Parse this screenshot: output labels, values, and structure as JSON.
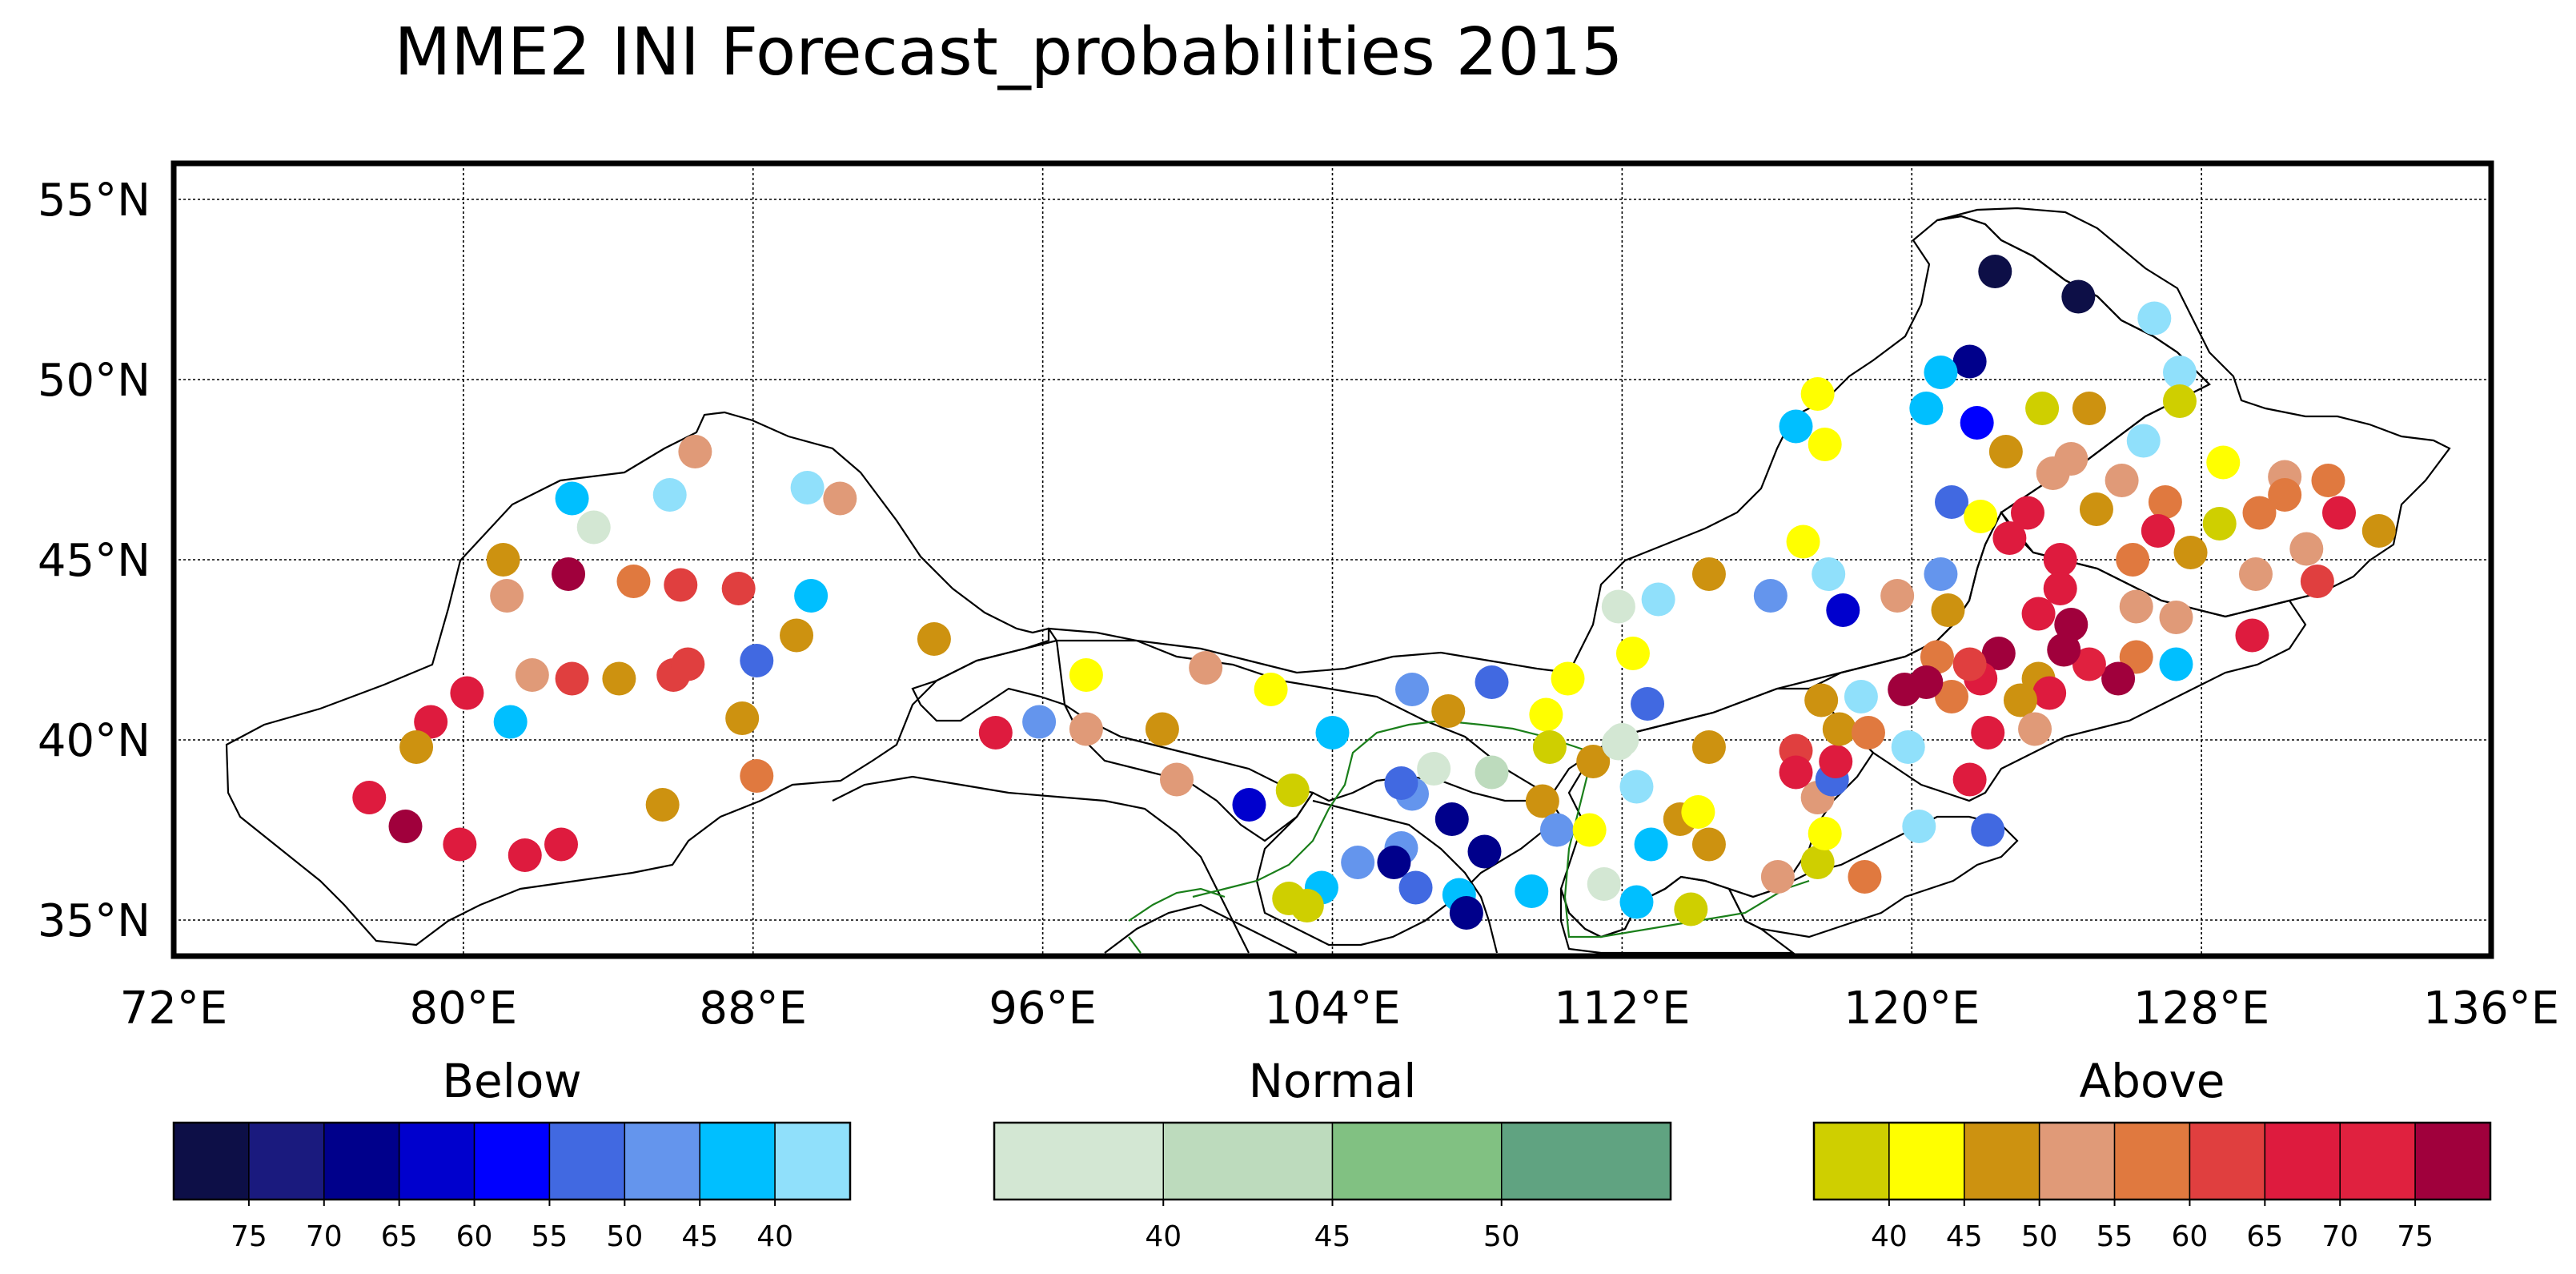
{
  "chart_data": {
    "type": "scatter",
    "title": "MME2 INI Forecast_probabilities 2015",
    "xlabel": "",
    "ylabel": "",
    "xlim": [
      72,
      136
    ],
    "ylim": [
      34,
      56
    ],
    "x_ticks": [
      "72°E",
      "80°E",
      "88°E",
      "96°E",
      "104°E",
      "112°E",
      "120°E",
      "128°E",
      "136°E"
    ],
    "y_ticks": [
      "55°N",
      "50°N",
      "45°N",
      "40°N",
      "35°N"
    ],
    "grid": true,
    "colorbars": [
      {
        "title": "Below",
        "colors": [
          "#0d0f47",
          "#1a1a7e",
          "#00008b",
          "#0000cd",
          "#0000ff",
          "#4169e1",
          "#6495ed",
          "#00bfff",
          "#90e0fb"
        ],
        "tick_labels": [
          "75",
          "70",
          "65",
          "60",
          "55",
          "50",
          "45",
          "40"
        ]
      },
      {
        "title": "Normal",
        "colors": [
          "#d3e7d3",
          "#bddbbd",
          "#81c182",
          "#60a381"
        ],
        "tick_labels": [
          "40",
          "45",
          "50"
        ]
      },
      {
        "title": "Above",
        "colors": [
          "#cfcf00",
          "#ffff00",
          "#cd9210",
          "#e09a78",
          "#e0793f",
          "#e03f3f",
          "#de1b3e",
          "#e0213f",
          "#a0003c"
        ],
        "tick_labels": [
          "40",
          "45",
          "50",
          "55",
          "60",
          "65",
          "70",
          "75"
        ]
      }
    ],
    "points": [
      {
        "lon": 122.3,
        "lat": 53.0,
        "c": "#0d0f47"
      },
      {
        "lon": 124.6,
        "lat": 52.3,
        "c": "#0d0f47"
      },
      {
        "lon": 126.7,
        "lat": 51.7,
        "c": "#90e0fb"
      },
      {
        "lon": 127.4,
        "lat": 50.2,
        "c": "#90e0fb"
      },
      {
        "lon": 121.6,
        "lat": 50.5,
        "c": "#00008b"
      },
      {
        "lon": 120.8,
        "lat": 50.2,
        "c": "#00bfff"
      },
      {
        "lon": 117.4,
        "lat": 49.6,
        "c": "#ffff00"
      },
      {
        "lon": 116.8,
        "lat": 48.7,
        "c": "#00bfff"
      },
      {
        "lon": 117.6,
        "lat": 48.2,
        "c": "#ffff00"
      },
      {
        "lon": 120.4,
        "lat": 49.2,
        "c": "#00bfff"
      },
      {
        "lon": 121.8,
        "lat": 48.8,
        "c": "#0000ff"
      },
      {
        "lon": 123.6,
        "lat": 49.2,
        "c": "#cfcf00"
      },
      {
        "lon": 124.9,
        "lat": 49.2,
        "c": "#cd9210"
      },
      {
        "lon": 127.4,
        "lat": 49.4,
        "c": "#cfcf00"
      },
      {
        "lon": 126.4,
        "lat": 48.3,
        "c": "#90e0fb"
      },
      {
        "lon": 122.6,
        "lat": 48.0,
        "c": "#cd9210"
      },
      {
        "lon": 124.4,
        "lat": 47.8,
        "c": "#e09a78"
      },
      {
        "lon": 123.9,
        "lat": 47.4,
        "c": "#e09a78"
      },
      {
        "lon": 125.8,
        "lat": 47.2,
        "c": "#e09a78"
      },
      {
        "lon": 128.6,
        "lat": 47.7,
        "c": "#ffff00"
      },
      {
        "lon": 130.3,
        "lat": 47.3,
        "c": "#e09a78"
      },
      {
        "lon": 131.5,
        "lat": 47.2,
        "c": "#e0793f"
      },
      {
        "lon": 130.3,
        "lat": 46.8,
        "c": "#e0793f"
      },
      {
        "lon": 129.6,
        "lat": 46.3,
        "c": "#e0793f"
      },
      {
        "lon": 127.0,
        "lat": 46.6,
        "c": "#e0793f"
      },
      {
        "lon": 125.1,
        "lat": 46.4,
        "c": "#cd9210"
      },
      {
        "lon": 121.1,
        "lat": 46.6,
        "c": "#4169e1"
      },
      {
        "lon": 121.9,
        "lat": 46.2,
        "c": "#ffff00"
      },
      {
        "lon": 123.2,
        "lat": 46.3,
        "c": "#de1b3e"
      },
      {
        "lon": 122.7,
        "lat": 45.6,
        "c": "#de1b3e"
      },
      {
        "lon": 124.1,
        "lat": 45.0,
        "c": "#de1b3e"
      },
      {
        "lon": 126.8,
        "lat": 45.8,
        "c": "#de1b3e"
      },
      {
        "lon": 126.1,
        "lat": 45.0,
        "c": "#e0793f"
      },
      {
        "lon": 128.5,
        "lat": 46.0,
        "c": "#cfcf00"
      },
      {
        "lon": 127.7,
        "lat": 45.2,
        "c": "#cd9210"
      },
      {
        "lon": 130.9,
        "lat": 45.3,
        "c": "#e09a78"
      },
      {
        "lon": 131.8,
        "lat": 46.3,
        "c": "#de1b3e"
      },
      {
        "lon": 132.9,
        "lat": 45.8,
        "c": "#cd9210"
      },
      {
        "lon": 129.5,
        "lat": 44.6,
        "c": "#e09a78"
      },
      {
        "lon": 131.2,
        "lat": 44.4,
        "c": "#e03f3f"
      },
      {
        "lon": 124.1,
        "lat": 44.2,
        "c": "#de1b3e"
      },
      {
        "lon": 123.5,
        "lat": 43.5,
        "c": "#de1b3e"
      },
      {
        "lon": 124.4,
        "lat": 43.2,
        "c": "#a0003c"
      },
      {
        "lon": 126.2,
        "lat": 43.7,
        "c": "#e09a78"
      },
      {
        "lon": 127.3,
        "lat": 43.4,
        "c": "#e09a78"
      },
      {
        "lon": 129.4,
        "lat": 42.9,
        "c": "#de1b3e"
      },
      {
        "lon": 127.3,
        "lat": 42.1,
        "c": "#00bfff"
      },
      {
        "lon": 126.2,
        "lat": 42.3,
        "c": "#e0793f"
      },
      {
        "lon": 125.7,
        "lat": 41.7,
        "c": "#a0003c"
      },
      {
        "lon": 124.9,
        "lat": 42.1,
        "c": "#e0213f"
      },
      {
        "lon": 124.2,
        "lat": 42.5,
        "c": "#a0003c"
      },
      {
        "lon": 123.5,
        "lat": 41.7,
        "c": "#cd9210"
      },
      {
        "lon": 123.8,
        "lat": 41.3,
        "c": "#de1b3e"
      },
      {
        "lon": 123.0,
        "lat": 41.1,
        "c": "#cd9210"
      },
      {
        "lon": 122.4,
        "lat": 42.4,
        "c": "#a0003c"
      },
      {
        "lon": 121.9,
        "lat": 41.7,
        "c": "#de1b3e"
      },
      {
        "lon": 121.6,
        "lat": 42.1,
        "c": "#e03f3f"
      },
      {
        "lon": 120.7,
        "lat": 42.3,
        "c": "#e0793f"
      },
      {
        "lon": 121.1,
        "lat": 41.2,
        "c": "#e0793f"
      },
      {
        "lon": 120.4,
        "lat": 41.6,
        "c": "#a0003c"
      },
      {
        "lon": 119.8,
        "lat": 41.4,
        "c": "#a0003c"
      },
      {
        "lon": 122.1,
        "lat": 40.2,
        "c": "#de1b3e"
      },
      {
        "lon": 123.4,
        "lat": 40.3,
        "c": "#e09a78"
      },
      {
        "lon": 121.6,
        "lat": 38.9,
        "c": "#de1b3e"
      },
      {
        "lon": 122.1,
        "lat": 37.5,
        "c": "#4169e1"
      },
      {
        "lon": 120.2,
        "lat": 37.6,
        "c": "#90e0fb"
      },
      {
        "lon": 119.9,
        "lat": 39.8,
        "c": "#90e0fb"
      },
      {
        "lon": 121.0,
        "lat": 43.6,
        "c": "#cd9210"
      },
      {
        "lon": 120.8,
        "lat": 44.6,
        "c": "#6495ed"
      },
      {
        "lon": 119.6,
        "lat": 44.0,
        "c": "#e09a78"
      },
      {
        "lon": 117.7,
        "lat": 44.6,
        "c": "#90e0fb"
      },
      {
        "lon": 117.0,
        "lat": 45.5,
        "c": "#ffff00"
      },
      {
        "lon": 118.1,
        "lat": 43.6,
        "c": "#0000cd"
      },
      {
        "lon": 116.1,
        "lat": 44.0,
        "c": "#6495ed"
      },
      {
        "lon": 114.4,
        "lat": 44.6,
        "c": "#cd9210"
      },
      {
        "lon": 113.0,
        "lat": 43.9,
        "c": "#90e0fb"
      },
      {
        "lon": 111.9,
        "lat": 43.7,
        "c": "#d3e7d3"
      },
      {
        "lon": 112.3,
        "lat": 42.4,
        "c": "#ffff00"
      },
      {
        "lon": 112.7,
        "lat": 41.0,
        "c": "#4169e1"
      },
      {
        "lon": 112.0,
        "lat": 40.0,
        "c": "#d3e7d3"
      },
      {
        "lon": 110.5,
        "lat": 41.7,
        "c": "#ffff00"
      },
      {
        "lon": 109.9,
        "lat": 40.7,
        "c": "#ffff00"
      },
      {
        "lon": 108.4,
        "lat": 41.6,
        "c": "#4169e1"
      },
      {
        "lon": 107.2,
        "lat": 40.8,
        "c": "#cd9210"
      },
      {
        "lon": 106.2,
        "lat": 41.4,
        "c": "#6495ed"
      },
      {
        "lon": 104.0,
        "lat": 40.2,
        "c": "#00bfff"
      },
      {
        "lon": 102.3,
        "lat": 41.4,
        "c": "#ffff00"
      },
      {
        "lon": 100.5,
        "lat": 42.0,
        "c": "#e09a78"
      },
      {
        "lon": 99.3,
        "lat": 40.3,
        "c": "#cd9210"
      },
      {
        "lon": 99.7,
        "lat": 38.9,
        "c": "#e09a78"
      },
      {
        "lon": 97.2,
        "lat": 41.8,
        "c": "#ffff00"
      },
      {
        "lon": 97.2,
        "lat": 40.3,
        "c": "#e09a78"
      },
      {
        "lon": 95.9,
        "lat": 40.5,
        "c": "#6495ed"
      },
      {
        "lon": 94.7,
        "lat": 40.2,
        "c": "#de1b3e"
      },
      {
        "lon": 93.0,
        "lat": 42.8,
        "c": "#cd9210"
      },
      {
        "lon": 114.4,
        "lat": 39.8,
        "c": "#cd9210"
      },
      {
        "lon": 111.2,
        "lat": 39.4,
        "c": "#cd9210"
      },
      {
        "lon": 110.0,
        "lat": 39.8,
        "c": "#cfcf00"
      },
      {
        "lon": 111.9,
        "lat": 39.9,
        "c": "#d3e7d3"
      },
      {
        "lon": 112.4,
        "lat": 38.7,
        "c": "#90e0fb"
      },
      {
        "lon": 109.8,
        "lat": 38.3,
        "c": "#cd9210"
      },
      {
        "lon": 110.2,
        "lat": 37.5,
        "c": "#6495ed"
      },
      {
        "lon": 111.1,
        "lat": 37.5,
        "c": "#ffff00"
      },
      {
        "lon": 112.8,
        "lat": 37.1,
        "c": "#00bfff"
      },
      {
        "lon": 113.6,
        "lat": 37.8,
        "c": "#cd9210"
      },
      {
        "lon": 114.1,
        "lat": 38.0,
        "c": "#ffff00"
      },
      {
        "lon": 114.4,
        "lat": 37.1,
        "c": "#cd9210"
      },
      {
        "lon": 108.4,
        "lat": 39.1,
        "c": "#bddbbd"
      },
      {
        "lon": 106.8,
        "lat": 39.2,
        "c": "#d3e7d3"
      },
      {
        "lon": 106.2,
        "lat": 38.5,
        "c": "#6495ed"
      },
      {
        "lon": 105.9,
        "lat": 38.8,
        "c": "#4169e1"
      },
      {
        "lon": 107.3,
        "lat": 37.8,
        "c": "#00008b"
      },
      {
        "lon": 108.2,
        "lat": 36.9,
        "c": "#00008b"
      },
      {
        "lon": 105.9,
        "lat": 37.0,
        "c": "#6495ed"
      },
      {
        "lon": 105.7,
        "lat": 36.6,
        "c": "#00008b"
      },
      {
        "lon": 106.3,
        "lat": 35.9,
        "c": "#4169e1"
      },
      {
        "lon": 104.7,
        "lat": 36.6,
        "c": "#6495ed"
      },
      {
        "lon": 103.7,
        "lat": 35.9,
        "c": "#00bfff"
      },
      {
        "lon": 102.8,
        "lat": 35.6,
        "c": "#cfcf00"
      },
      {
        "lon": 103.3,
        "lat": 35.4,
        "c": "#cfcf00"
      },
      {
        "lon": 107.5,
        "lat": 35.7,
        "c": "#00bfff"
      },
      {
        "lon": 107.7,
        "lat": 35.2,
        "c": "#00008b"
      },
      {
        "lon": 109.5,
        "lat": 35.8,
        "c": "#00bfff"
      },
      {
        "lon": 111.5,
        "lat": 36.0,
        "c": "#d3e7d3"
      },
      {
        "lon": 112.4,
        "lat": 35.5,
        "c": "#00bfff"
      },
      {
        "lon": 113.9,
        "lat": 35.3,
        "c": "#cfcf00"
      },
      {
        "lon": 102.9,
        "lat": 38.6,
        "c": "#cfcf00"
      },
      {
        "lon": 101.7,
        "lat": 38.2,
        "c": "#0000cd"
      },
      {
        "lon": 116.3,
        "lat": 36.2,
        "c": "#e09a78"
      },
      {
        "lon": 117.4,
        "lat": 36.6,
        "c": "#cfcf00"
      },
      {
        "lon": 117.6,
        "lat": 37.4,
        "c": "#ffff00"
      },
      {
        "lon": 118.7,
        "lat": 36.2,
        "c": "#e0793f"
      },
      {
        "lon": 117.4,
        "lat": 38.4,
        "c": "#e09a78"
      },
      {
        "lon": 117.8,
        "lat": 38.9,
        "c": "#4169e1"
      },
      {
        "lon": 117.9,
        "lat": 39.4,
        "c": "#de1b3e"
      },
      {
        "lon": 118.0,
        "lat": 40.3,
        "c": "#cd9210"
      },
      {
        "lon": 117.5,
        "lat": 41.1,
        "c": "#cd9210"
      },
      {
        "lon": 118.6,
        "lat": 41.2,
        "c": "#90e0fb"
      },
      {
        "lon": 116.8,
        "lat": 39.7,
        "c": "#e03f3f"
      },
      {
        "lon": 116.8,
        "lat": 39.1,
        "c": "#de1b3e"
      },
      {
        "lon": 118.8,
        "lat": 40.2,
        "c": "#e0793f"
      },
      {
        "lon": 80.1,
        "lat": 41.3,
        "c": "#de1b3e"
      },
      {
        "lon": 79.1,
        "lat": 40.5,
        "c": "#de1b3e"
      },
      {
        "lon": 78.7,
        "lat": 39.8,
        "c": "#cd9210"
      },
      {
        "lon": 77.4,
        "lat": 38.4,
        "c": "#de1b3e"
      },
      {
        "lon": 78.4,
        "lat": 37.6,
        "c": "#a0003c"
      },
      {
        "lon": 79.9,
        "lat": 37.1,
        "c": "#de1b3e"
      },
      {
        "lon": 81.7,
        "lat": 36.8,
        "c": "#de1b3e"
      },
      {
        "lon": 82.7,
        "lat": 37.1,
        "c": "#de1b3e"
      },
      {
        "lon": 81.3,
        "lat": 40.5,
        "c": "#00bfff"
      },
      {
        "lon": 81.9,
        "lat": 41.8,
        "c": "#e09a78"
      },
      {
        "lon": 83.0,
        "lat": 41.7,
        "c": "#e03f3f"
      },
      {
        "lon": 84.3,
        "lat": 41.7,
        "c": "#cd9210"
      },
      {
        "lon": 85.8,
        "lat": 41.8,
        "c": "#e03f3f"
      },
      {
        "lon": 86.2,
        "lat": 42.1,
        "c": "#e03f3f"
      },
      {
        "lon": 85.5,
        "lat": 38.2,
        "c": "#cd9210"
      },
      {
        "lon": 87.7,
        "lat": 40.6,
        "c": "#cd9210"
      },
      {
        "lon": 88.1,
        "lat": 39.0,
        "c": "#e0793f"
      },
      {
        "lon": 88.1,
        "lat": 42.2,
        "c": "#4169e1"
      },
      {
        "lon": 89.2,
        "lat": 42.9,
        "c": "#cd9210"
      },
      {
        "lon": 89.6,
        "lat": 44.0,
        "c": "#00bfff"
      },
      {
        "lon": 81.1,
        "lat": 45.0,
        "c": "#cd9210"
      },
      {
        "lon": 81.2,
        "lat": 44.0,
        "c": "#e09a78"
      },
      {
        "lon": 82.9,
        "lat": 44.6,
        "c": "#a0003c"
      },
      {
        "lon": 84.7,
        "lat": 44.4,
        "c": "#e0793f"
      },
      {
        "lon": 86.0,
        "lat": 44.3,
        "c": "#e03f3f"
      },
      {
        "lon": 87.6,
        "lat": 44.2,
        "c": "#e03f3f"
      },
      {
        "lon": 83.0,
        "lat": 46.7,
        "c": "#00bfff"
      },
      {
        "lon": 83.6,
        "lat": 45.9,
        "c": "#d3e7d3"
      },
      {
        "lon": 85.7,
        "lat": 46.8,
        "c": "#90e0fb"
      },
      {
        "lon": 86.4,
        "lat": 48.0,
        "c": "#e09a78"
      },
      {
        "lon": 89.5,
        "lat": 47.0,
        "c": "#90e0fb"
      },
      {
        "lon": 90.4,
        "lat": 46.7,
        "c": "#e09a78"
      }
    ]
  }
}
